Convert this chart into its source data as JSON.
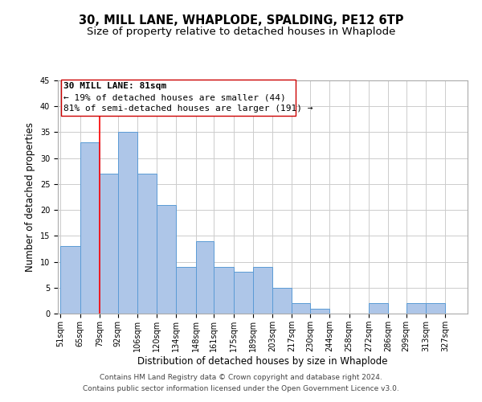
{
  "title": "30, MILL LANE, WHAPLODE, SPALDING, PE12 6TP",
  "subtitle": "Size of property relative to detached houses in Whaplode",
  "xlabel": "Distribution of detached houses by size in Whaplode",
  "ylabel": "Number of detached properties",
  "bar_values": [
    13,
    33,
    27,
    35,
    27,
    21,
    9,
    14,
    9,
    8,
    9,
    5,
    2,
    1,
    0,
    0,
    2,
    0,
    2,
    2
  ],
  "bar_left_edges": [
    51,
    65,
    79,
    92,
    106,
    120,
    134,
    148,
    161,
    175,
    189,
    203,
    217,
    230,
    244,
    258,
    272,
    286,
    299,
    313
  ],
  "bar_widths": [
    14,
    14,
    13,
    14,
    14,
    14,
    14,
    13,
    14,
    14,
    14,
    14,
    13,
    14,
    14,
    14,
    14,
    13,
    14,
    14
  ],
  "x_tick_labels": [
    "51sqm",
    "65sqm",
    "79sqm",
    "92sqm",
    "106sqm",
    "120sqm",
    "134sqm",
    "148sqm",
    "161sqm",
    "175sqm",
    "189sqm",
    "203sqm",
    "217sqm",
    "230sqm",
    "244sqm",
    "258sqm",
    "272sqm",
    "286sqm",
    "299sqm",
    "313sqm",
    "327sqm"
  ],
  "x_tick_positions": [
    51,
    65,
    79,
    92,
    106,
    120,
    134,
    148,
    161,
    175,
    189,
    203,
    217,
    230,
    244,
    258,
    272,
    286,
    299,
    313,
    327
  ],
  "bar_color": "#aec6e8",
  "bar_edge_color": "#5b9bd5",
  "red_line_x": 79,
  "ylim": [
    0,
    45
  ],
  "yticks": [
    0,
    5,
    10,
    15,
    20,
    25,
    30,
    35,
    40,
    45
  ],
  "xlim_left": 49,
  "xlim_right": 343,
  "annotation_line1": "30 MILL LANE: 81sqm",
  "annotation_line2": "← 19% of detached houses are smaller (44)",
  "annotation_line3": "81% of semi-detached houses are larger (191) →",
  "footer_line1": "Contains HM Land Registry data © Crown copyright and database right 2024.",
  "footer_line2": "Contains public sector information licensed under the Open Government Licence v3.0.",
  "background_color": "#ffffff",
  "grid_color": "#cccccc",
  "title_fontsize": 10.5,
  "subtitle_fontsize": 9.5,
  "axis_label_fontsize": 8.5,
  "tick_fontsize": 7,
  "annotation_fontsize": 8,
  "footer_fontsize": 6.5
}
